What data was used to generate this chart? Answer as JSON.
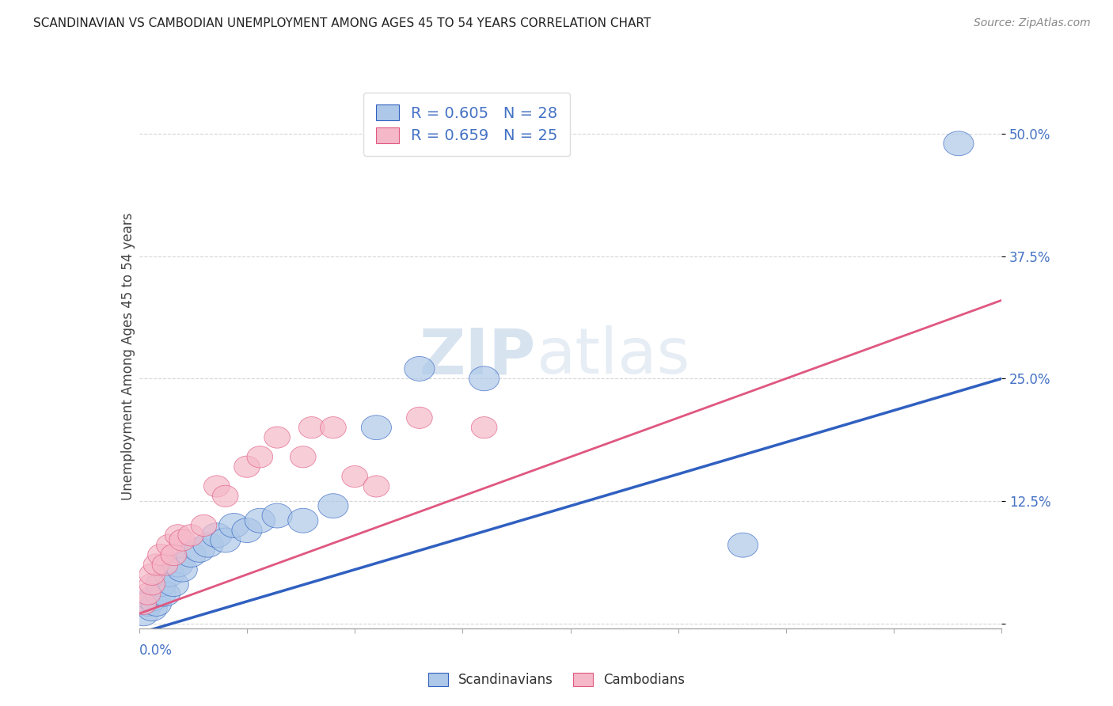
{
  "title": "SCANDINAVIAN VS CAMBODIAN UNEMPLOYMENT AMONG AGES 45 TO 54 YEARS CORRELATION CHART",
  "source": "Source: ZipAtlas.com",
  "ylabel": "Unemployment Among Ages 45 to 54 years",
  "xlim": [
    0.0,
    0.2
  ],
  "ylim": [
    -0.005,
    0.55
  ],
  "yticks": [
    0.0,
    0.125,
    0.25,
    0.375,
    0.5
  ],
  "ytick_labels": [
    "",
    "12.5%",
    "25.0%",
    "37.5%",
    "50.0%"
  ],
  "scandinavian_color": "#adc8e8",
  "cambodian_color": "#f5b8c8",
  "line_blue": "#3060c0",
  "line_pink": "#e05880",
  "line_gray_dashed": "#bbbbcc",
  "legend_R_scan": "R = 0.605",
  "legend_N_scan": "N = 28",
  "legend_R_camb": "R = 0.659",
  "legend_N_camb": "N = 25",
  "scan_x": [
    0.001,
    0.002,
    0.003,
    0.003,
    0.004,
    0.005,
    0.005,
    0.006,
    0.007,
    0.008,
    0.009,
    0.01,
    0.012,
    0.014,
    0.016,
    0.018,
    0.02,
    0.022,
    0.025,
    0.028,
    0.032,
    0.038,
    0.045,
    0.055,
    0.065,
    0.08,
    0.14,
    0.19
  ],
  "scan_y": [
    0.01,
    0.02,
    0.015,
    0.025,
    0.02,
    0.03,
    0.04,
    0.03,
    0.05,
    0.04,
    0.06,
    0.055,
    0.07,
    0.075,
    0.08,
    0.09,
    0.085,
    0.1,
    0.095,
    0.105,
    0.11,
    0.105,
    0.12,
    0.2,
    0.26,
    0.25,
    0.08,
    0.49
  ],
  "camb_x": [
    0.001,
    0.002,
    0.003,
    0.003,
    0.004,
    0.005,
    0.006,
    0.007,
    0.008,
    0.009,
    0.01,
    0.012,
    0.015,
    0.018,
    0.02,
    0.025,
    0.028,
    0.032,
    0.038,
    0.04,
    0.045,
    0.05,
    0.055,
    0.065,
    0.08
  ],
  "camb_y": [
    0.02,
    0.03,
    0.04,
    0.05,
    0.06,
    0.07,
    0.06,
    0.08,
    0.07,
    0.09,
    0.085,
    0.09,
    0.1,
    0.14,
    0.13,
    0.16,
    0.17,
    0.19,
    0.17,
    0.2,
    0.2,
    0.15,
    0.14,
    0.21,
    0.2
  ],
  "watermark_zip": "ZIP",
  "watermark_atlas": "atlas",
  "background_color": "#ffffff",
  "grid_color": "#cccccc"
}
